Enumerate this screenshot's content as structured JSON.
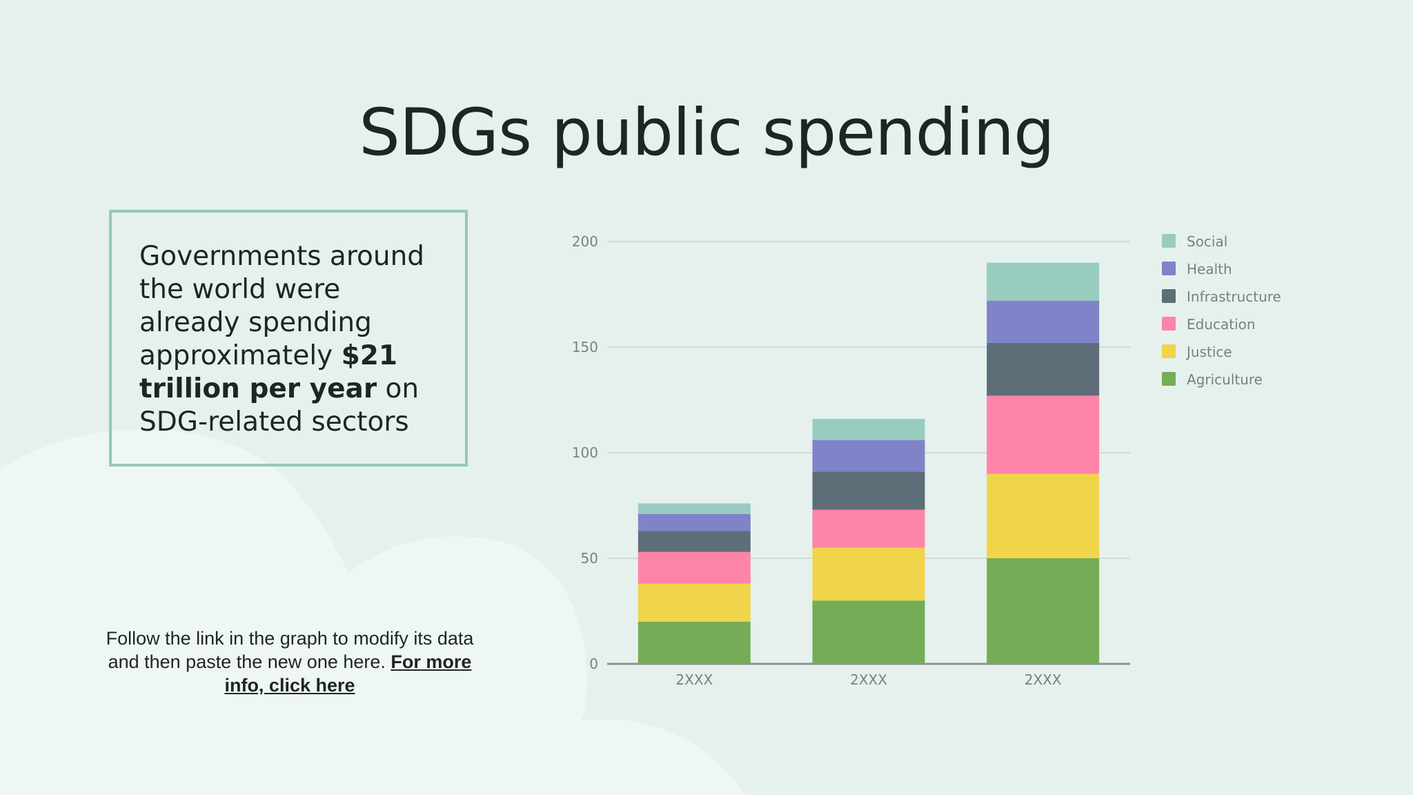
{
  "slide": {
    "title": "SDGs public spending",
    "info": {
      "part1": "Governments around the world were already spending approximately ",
      "bold": "$21 trillion per year",
      "part2": " on SDG-related sectors"
    },
    "note": {
      "text": "Follow the link in the graph to modify its data and then paste the new one here. ",
      "link": "For more info, click here"
    }
  },
  "chart_data": {
    "type": "bar",
    "stacked": true,
    "categories": [
      "2XXX",
      "2XXX",
      "2XXX"
    ],
    "series": [
      {
        "name": "Agriculture",
        "color": "#75ad57",
        "values": [
          20,
          30,
          50
        ]
      },
      {
        "name": "Justice",
        "color": "#f0d54a",
        "values": [
          18,
          25,
          40
        ]
      },
      {
        "name": "Education",
        "color": "#fe83a8",
        "values": [
          15,
          18,
          37
        ]
      },
      {
        "name": "Infrastructure",
        "color": "#5e6e78",
        "values": [
          10,
          18,
          25
        ]
      },
      {
        "name": "Health",
        "color": "#7e84c7",
        "values": [
          8,
          15,
          20
        ]
      },
      {
        "name": "Social",
        "color": "#98ccc0",
        "values": [
          5,
          10,
          18
        ]
      }
    ],
    "yticks": [
      0,
      50,
      100,
      150,
      200
    ],
    "ylim": [
      0,
      200
    ],
    "grid": true,
    "legend_position": "right"
  }
}
